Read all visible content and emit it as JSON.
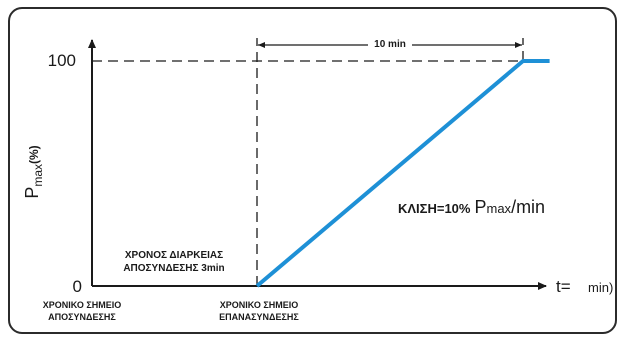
{
  "chart_data": {
    "type": "line",
    "x_label": "t=",
    "x_unit": "min)",
    "y_label_base": "P",
    "y_label_sub": "max",
    "y_label_suffix": "(%)",
    "y_ticks": [
      "0",
      "100"
    ],
    "ylim": [
      0,
      100
    ],
    "xlim_min": [
      -3,
      11.5
    ],
    "series": [
      {
        "values": [
          [
            -3,
            null
          ],
          [
            0,
            0
          ],
          [
            10,
            100
          ],
          [
            11,
            100
          ]
        ],
        "color": "#1e90d6"
      }
    ],
    "annotations": {
      "duration_label": "10 min",
      "slope_prefix": "ΚΛΙΣΗ=10%",
      "slope_p": "P",
      "slope_sub": "max",
      "slope_suffix": "/min",
      "outage_line1": "ΧΡΟΝΟΣ  ΔΙΑΡΚΕΙΑΣ",
      "outage_line2": "ΑΠΟΣΥΝΔΕΣΗΣ 3min",
      "disconnect_line1": "ΧΡΟΝΙΚΟ ΣΗΜΕΙΟ",
      "disconnect_line2": "ΑΠΟΣΥΝΔΕΣΗΣ",
      "reconnect_line1": "ΧΡΟΝΙΚΟ ΣΗΜΕΙΟ",
      "reconnect_line2": "ΕΠΑΝΑΣΥΝΔΕΣΗΣ"
    },
    "grid": false,
    "legend": "none"
  }
}
